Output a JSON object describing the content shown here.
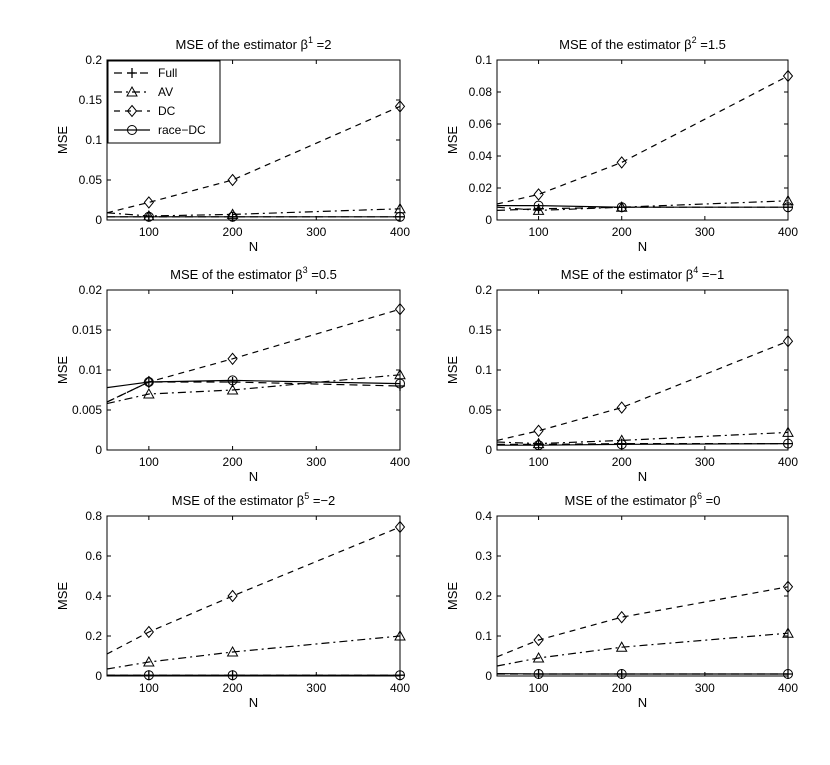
{
  "chart_data": [
    {
      "type": "line",
      "title_prefix": "MSE of the estimator β",
      "title_sup": "1",
      "title_suffix": " =2",
      "xlabel": "N",
      "ylabel": "MSE",
      "xlim": [
        50,
        400
      ],
      "ylim": [
        0,
        0.2
      ],
      "xticks": [
        100,
        200,
        300,
        400
      ],
      "yticks": [
        0,
        0.05,
        0.1,
        0.15,
        0.2
      ],
      "ytick_labels": [
        "0",
        "0.05",
        "0.1",
        "0.15",
        "0.2"
      ],
      "x": [
        50,
        100,
        200,
        400
      ],
      "series": [
        {
          "name": "Full",
          "values": [
            0.004,
            0.004,
            0.004,
            0.004
          ]
        },
        {
          "name": "AV",
          "values": [
            0.009,
            0.005,
            0.007,
            0.014
          ]
        },
        {
          "name": "DC",
          "values": [
            0.009,
            0.022,
            0.05,
            0.142
          ]
        },
        {
          "name": "race-DC",
          "values": [
            0.004,
            0.004,
            0.004,
            0.004
          ]
        }
      ]
    },
    {
      "type": "line",
      "title_prefix": "MSE of the estimator β",
      "title_sup": "2",
      "title_suffix": " =1.5",
      "xlabel": "N",
      "ylabel": "MSE",
      "xlim": [
        50,
        400
      ],
      "ylim": [
        0,
        0.1
      ],
      "xticks": [
        100,
        200,
        300,
        400
      ],
      "yticks": [
        0,
        0.02,
        0.04,
        0.06,
        0.08,
        0.1
      ],
      "ytick_labels": [
        "0",
        "0.02",
        "0.04",
        "0.06",
        "0.08",
        "0.1"
      ],
      "x": [
        50,
        100,
        200,
        400
      ],
      "series": [
        {
          "name": "Full",
          "values": [
            0.006,
            0.007,
            0.008,
            0.008
          ]
        },
        {
          "name": "AV",
          "values": [
            0.008,
            0.006,
            0.008,
            0.012
          ]
        },
        {
          "name": "DC",
          "values": [
            0.01,
            0.016,
            0.036,
            0.09
          ]
        },
        {
          "name": "race-DC",
          "values": [
            0.009,
            0.009,
            0.008,
            0.008
          ]
        }
      ]
    },
    {
      "type": "line",
      "title_prefix": "MSE of the estimator β",
      "title_sup": "3",
      "title_suffix": " =0.5",
      "xlabel": "N",
      "ylabel": "MSE",
      "xlim": [
        50,
        400
      ],
      "ylim": [
        0,
        0.02
      ],
      "xticks": [
        100,
        200,
        300,
        400
      ],
      "yticks": [
        0,
        0.005,
        0.01,
        0.015,
        0.02
      ],
      "ytick_labels": [
        "0",
        "0.005",
        "0.01",
        "0.015",
        "0.02"
      ],
      "x": [
        50,
        100,
        200,
        400
      ],
      "series": [
        {
          "name": "Full",
          "values": [
            0.006,
            0.0085,
            0.0085,
            0.008
          ]
        },
        {
          "name": "AV",
          "values": [
            0.0058,
            0.007,
            0.0075,
            0.0094
          ]
        },
        {
          "name": "DC",
          "values": [
            0.006,
            0.0085,
            0.0114,
            0.0176
          ]
        },
        {
          "name": "race-DC",
          "values": [
            0.0078,
            0.0085,
            0.0087,
            0.0083
          ]
        }
      ]
    },
    {
      "type": "line",
      "title_prefix": "MSE of the estimator β",
      "title_sup": "4",
      "title_suffix": " =−1",
      "xlabel": "N",
      "ylabel": "MSE",
      "xlim": [
        50,
        400
      ],
      "ylim": [
        0,
        0.2
      ],
      "xticks": [
        100,
        200,
        300,
        400
      ],
      "yticks": [
        0,
        0.05,
        0.1,
        0.15,
        0.2
      ],
      "ytick_labels": [
        "0",
        "0.05",
        "0.1",
        "0.15",
        "0.2"
      ],
      "x": [
        50,
        100,
        200,
        400
      ],
      "series": [
        {
          "name": "Full",
          "values": [
            0.007,
            0.007,
            0.008,
            0.008
          ]
        },
        {
          "name": "AV",
          "values": [
            0.01,
            0.008,
            0.012,
            0.022
          ]
        },
        {
          "name": "DC",
          "values": [
            0.012,
            0.024,
            0.053,
            0.136
          ]
        },
        {
          "name": "race-DC",
          "values": [
            0.006,
            0.006,
            0.007,
            0.008
          ]
        }
      ]
    },
    {
      "type": "line",
      "title_prefix": "MSE of the estimator β",
      "title_sup": "5",
      "title_suffix": " =−2",
      "xlabel": "N",
      "ylabel": "MSE",
      "xlim": [
        50,
        400
      ],
      "ylim": [
        0,
        0.8
      ],
      "xticks": [
        100,
        200,
        300,
        400
      ],
      "yticks": [
        0,
        0.2,
        0.4,
        0.6,
        0.8
      ],
      "ytick_labels": [
        "0",
        "0.2",
        "0.4",
        "0.6",
        "0.8"
      ],
      "x": [
        50,
        100,
        200,
        400
      ],
      "series": [
        {
          "name": "Full",
          "values": [
            0.004,
            0.004,
            0.004,
            0.004
          ]
        },
        {
          "name": "AV",
          "values": [
            0.035,
            0.07,
            0.12,
            0.2
          ]
        },
        {
          "name": "DC",
          "values": [
            0.11,
            0.22,
            0.4,
            0.745
          ]
        },
        {
          "name": "race-DC",
          "values": [
            0.004,
            0.004,
            0.004,
            0.004
          ]
        }
      ]
    },
    {
      "type": "line",
      "title_prefix": "MSE of the estimator β",
      "title_sup": "6",
      "title_suffix": " =0",
      "xlabel": "N",
      "ylabel": "MSE",
      "xlim": [
        50,
        400
      ],
      "ylim": [
        0,
        0.4
      ],
      "xticks": [
        100,
        200,
        300,
        400
      ],
      "yticks": [
        0,
        0.1,
        0.2,
        0.3,
        0.4
      ],
      "ytick_labels": [
        "0",
        "0.1",
        "0.2",
        "0.3",
        "0.4"
      ],
      "x": [
        50,
        100,
        200,
        400
      ],
      "series": [
        {
          "name": "Full",
          "values": [
            0.005,
            0.005,
            0.005,
            0.005
          ]
        },
        {
          "name": "AV",
          "values": [
            0.025,
            0.045,
            0.072,
            0.107
          ]
        },
        {
          "name": "DC",
          "values": [
            0.048,
            0.09,
            0.147,
            0.223
          ]
        },
        {
          "name": "race-DC",
          "values": [
            0.006,
            0.005,
            0.005,
            0.005
          ]
        }
      ]
    }
  ],
  "legend": {
    "placement": "top-left of first panel",
    "entries": [
      "Full",
      "AV",
      "DC",
      "race−DC"
    ]
  }
}
